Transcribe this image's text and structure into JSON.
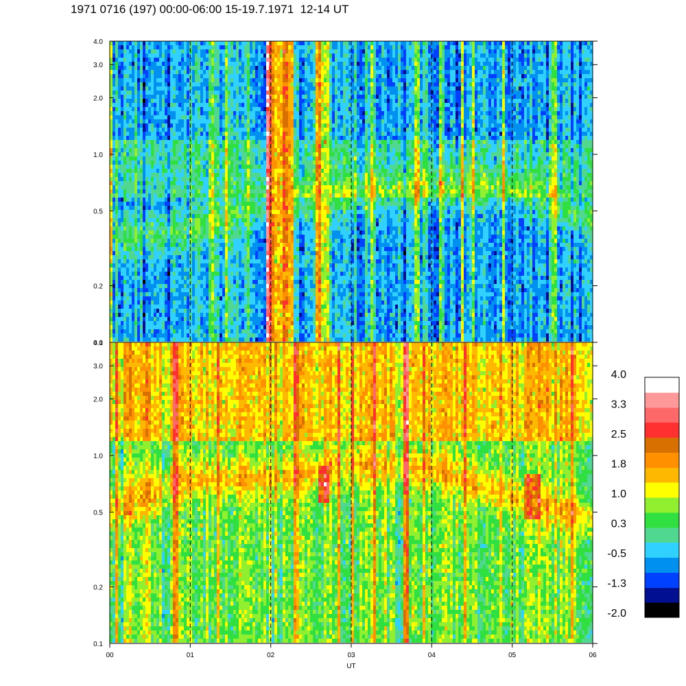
{
  "title": "1971 0716 (197) 00:00-06:00 15-19.7.1971  12-14 UT",
  "chart_data": {
    "type": "heatmap",
    "xlabel": "UT",
    "x_ticks": [
      "00",
      "01",
      "02",
      "03",
      "04",
      "05",
      "06"
    ],
    "xlim": [
      0,
      6
    ],
    "panels": [
      {
        "name": "upper",
        "y_scale": "log",
        "ylim": [
          0.1,
          4.0
        ],
        "y_ticks": [
          0.1,
          0.2,
          0.5,
          1.0,
          2.0,
          3.0,
          4.0
        ],
        "y_tick_labels": [
          "0.1",
          "0.2",
          "0.5",
          "1.0",
          "2.0",
          "3.0",
          "4.0"
        ],
        "background_level": -0.5,
        "band": {
          "center_y": [
            0.35,
            0.4,
            0.55,
            0.6,
            0.65,
            0.65,
            0.45
          ],
          "level": 0.3
        },
        "enhancements": [
          {
            "x_start": 1.95,
            "x_end": 2.3,
            "y_min": 0.1,
            "y_max": 4.0,
            "level": 1.8
          },
          {
            "x_start": 2.55,
            "x_end": 2.72,
            "y_min": 0.1,
            "y_max": 4.0,
            "level": 1.4
          }
        ]
      },
      {
        "name": "lower",
        "y_scale": "log",
        "ylim": [
          0.1,
          4.0
        ],
        "y_ticks": [
          0.1,
          0.2,
          0.5,
          1.0,
          2.0,
          3.0,
          4.0
        ],
        "y_tick_labels": [
          "0.1",
          "0.2",
          "0.5",
          "1.0",
          "2.0",
          "3.0",
          "4.0"
        ],
        "background_level": 0.6,
        "band": {
          "center_y": [
            0.5,
            0.75,
            0.75,
            0.9,
            0.85,
            0.6,
            0.45
          ],
          "level": 1.6
        },
        "enhancements": [
          {
            "x_start": 2.6,
            "x_end": 2.72,
            "y_min": 0.55,
            "y_max": 0.9,
            "level": 2.7
          },
          {
            "x_start": 5.15,
            "x_end": 5.35,
            "y_min": 0.45,
            "y_max": 0.8,
            "level": 2.1
          }
        ]
      }
    ],
    "colorbar": {
      "labels": [
        "4.0",
        "3.3",
        "2.5",
        "1.8",
        "1.0",
        "0.3",
        "-0.5",
        "-1.3",
        "-2.0"
      ],
      "colors": [
        "#000000",
        "#001090",
        "#0040ff",
        "#0090f0",
        "#30d0ff",
        "#50d890",
        "#30e040",
        "#90f030",
        "#ffff00",
        "#ffb800",
        "#ff9000",
        "#d87000",
        "#ff3030",
        "#ff6868",
        "#ff9898",
        "#ffffff"
      ]
    }
  }
}
